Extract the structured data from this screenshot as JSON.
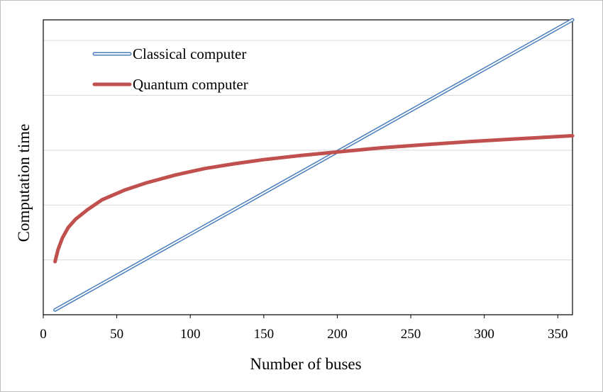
{
  "chart_data": {
    "type": "line",
    "title": "",
    "xlabel": "Number of buses",
    "ylabel": "Computation time",
    "xlim": [
      0,
      360
    ],
    "ylim": [
      0,
      100
    ],
    "x_ticks": [
      0,
      50,
      100,
      150,
      200,
      250,
      300,
      350
    ],
    "y_gridlines": [
      18.6,
      37.2,
      55.8,
      74.4,
      93.0
    ],
    "y_ticks_labeled": false,
    "grid": true,
    "legend_position": "top-left",
    "series": [
      {
        "name": "Classical computer",
        "color": "#4a7ebb",
        "style": "double-line",
        "x": [
          8,
          360
        ],
        "y": [
          1.6,
          100
        ]
      },
      {
        "name": "Quantum computer",
        "color": "#c0504d",
        "style": "thick",
        "x": [
          8,
          10,
          13,
          17,
          22,
          30,
          40,
          55,
          70,
          90,
          110,
          130,
          150,
          175,
          200,
          230,
          260,
          290,
          320,
          360
        ],
        "y": [
          18.0,
          22.0,
          26.0,
          29.6,
          32.4,
          35.6,
          39.0,
          42.2,
          44.7,
          47.4,
          49.6,
          51.2,
          52.6,
          54.0,
          55.2,
          56.6,
          57.7,
          58.7,
          59.6,
          60.7
        ]
      }
    ]
  }
}
